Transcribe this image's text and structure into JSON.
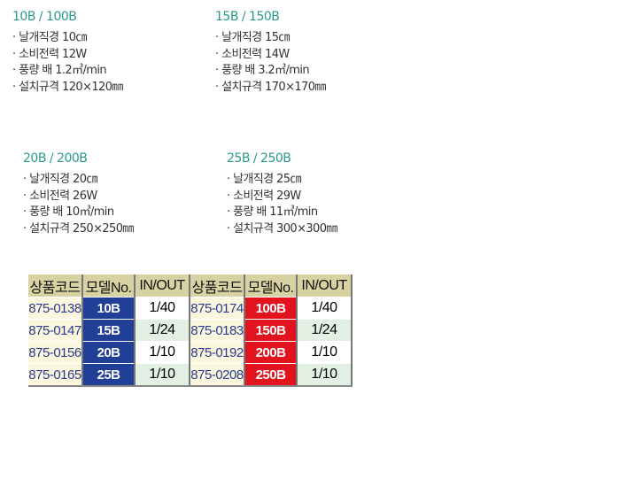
{
  "models": [
    {
      "title": "10B / 100B",
      "specs": [
        "날개직경 10㎝",
        "소비전력 12W",
        "풍량 배 1.2㎥/min",
        "설치규격 120×120㎜"
      ]
    },
    {
      "title": "15B / 150B",
      "specs": [
        "날개직경 15㎝",
        "소비전력 14W",
        "풍량 배 3.2㎥/min",
        "설치규격 170×170㎜"
      ]
    },
    {
      "title": "20B / 200B",
      "specs": [
        "날개직경 20㎝",
        "소비전력 26W",
        "풍량 배 10㎥/min",
        "설치규격 250×250㎜"
      ]
    },
    {
      "title": "25B / 250B",
      "specs": [
        "날개직경 25㎝",
        "소비전력 29W",
        "풍량 배 11㎥/min",
        "설치규격 300×300㎜"
      ]
    }
  ],
  "table": {
    "headers": [
      "상품코드",
      "모델No.",
      "IN/OUT",
      "상품코드",
      "모델No.",
      "IN/OUT"
    ],
    "rows": [
      [
        "875-0138",
        "10B",
        "1/40",
        "875-0174",
        "100B",
        "1/40"
      ],
      [
        "875-0147",
        "15B",
        "1/24",
        "875-0183",
        "150B",
        "1/24"
      ],
      [
        "875-0156",
        "20B",
        "1/10",
        "875-0192",
        "200B",
        "1/10"
      ],
      [
        "875-0165",
        "25B",
        "1/10",
        "875-0208",
        "250B",
        "1/10"
      ]
    ]
  },
  "colors": {
    "title": "#2a9a88",
    "blue_model": "#223f97",
    "red_model": "#e0131f",
    "header": "#d8d2a2"
  }
}
